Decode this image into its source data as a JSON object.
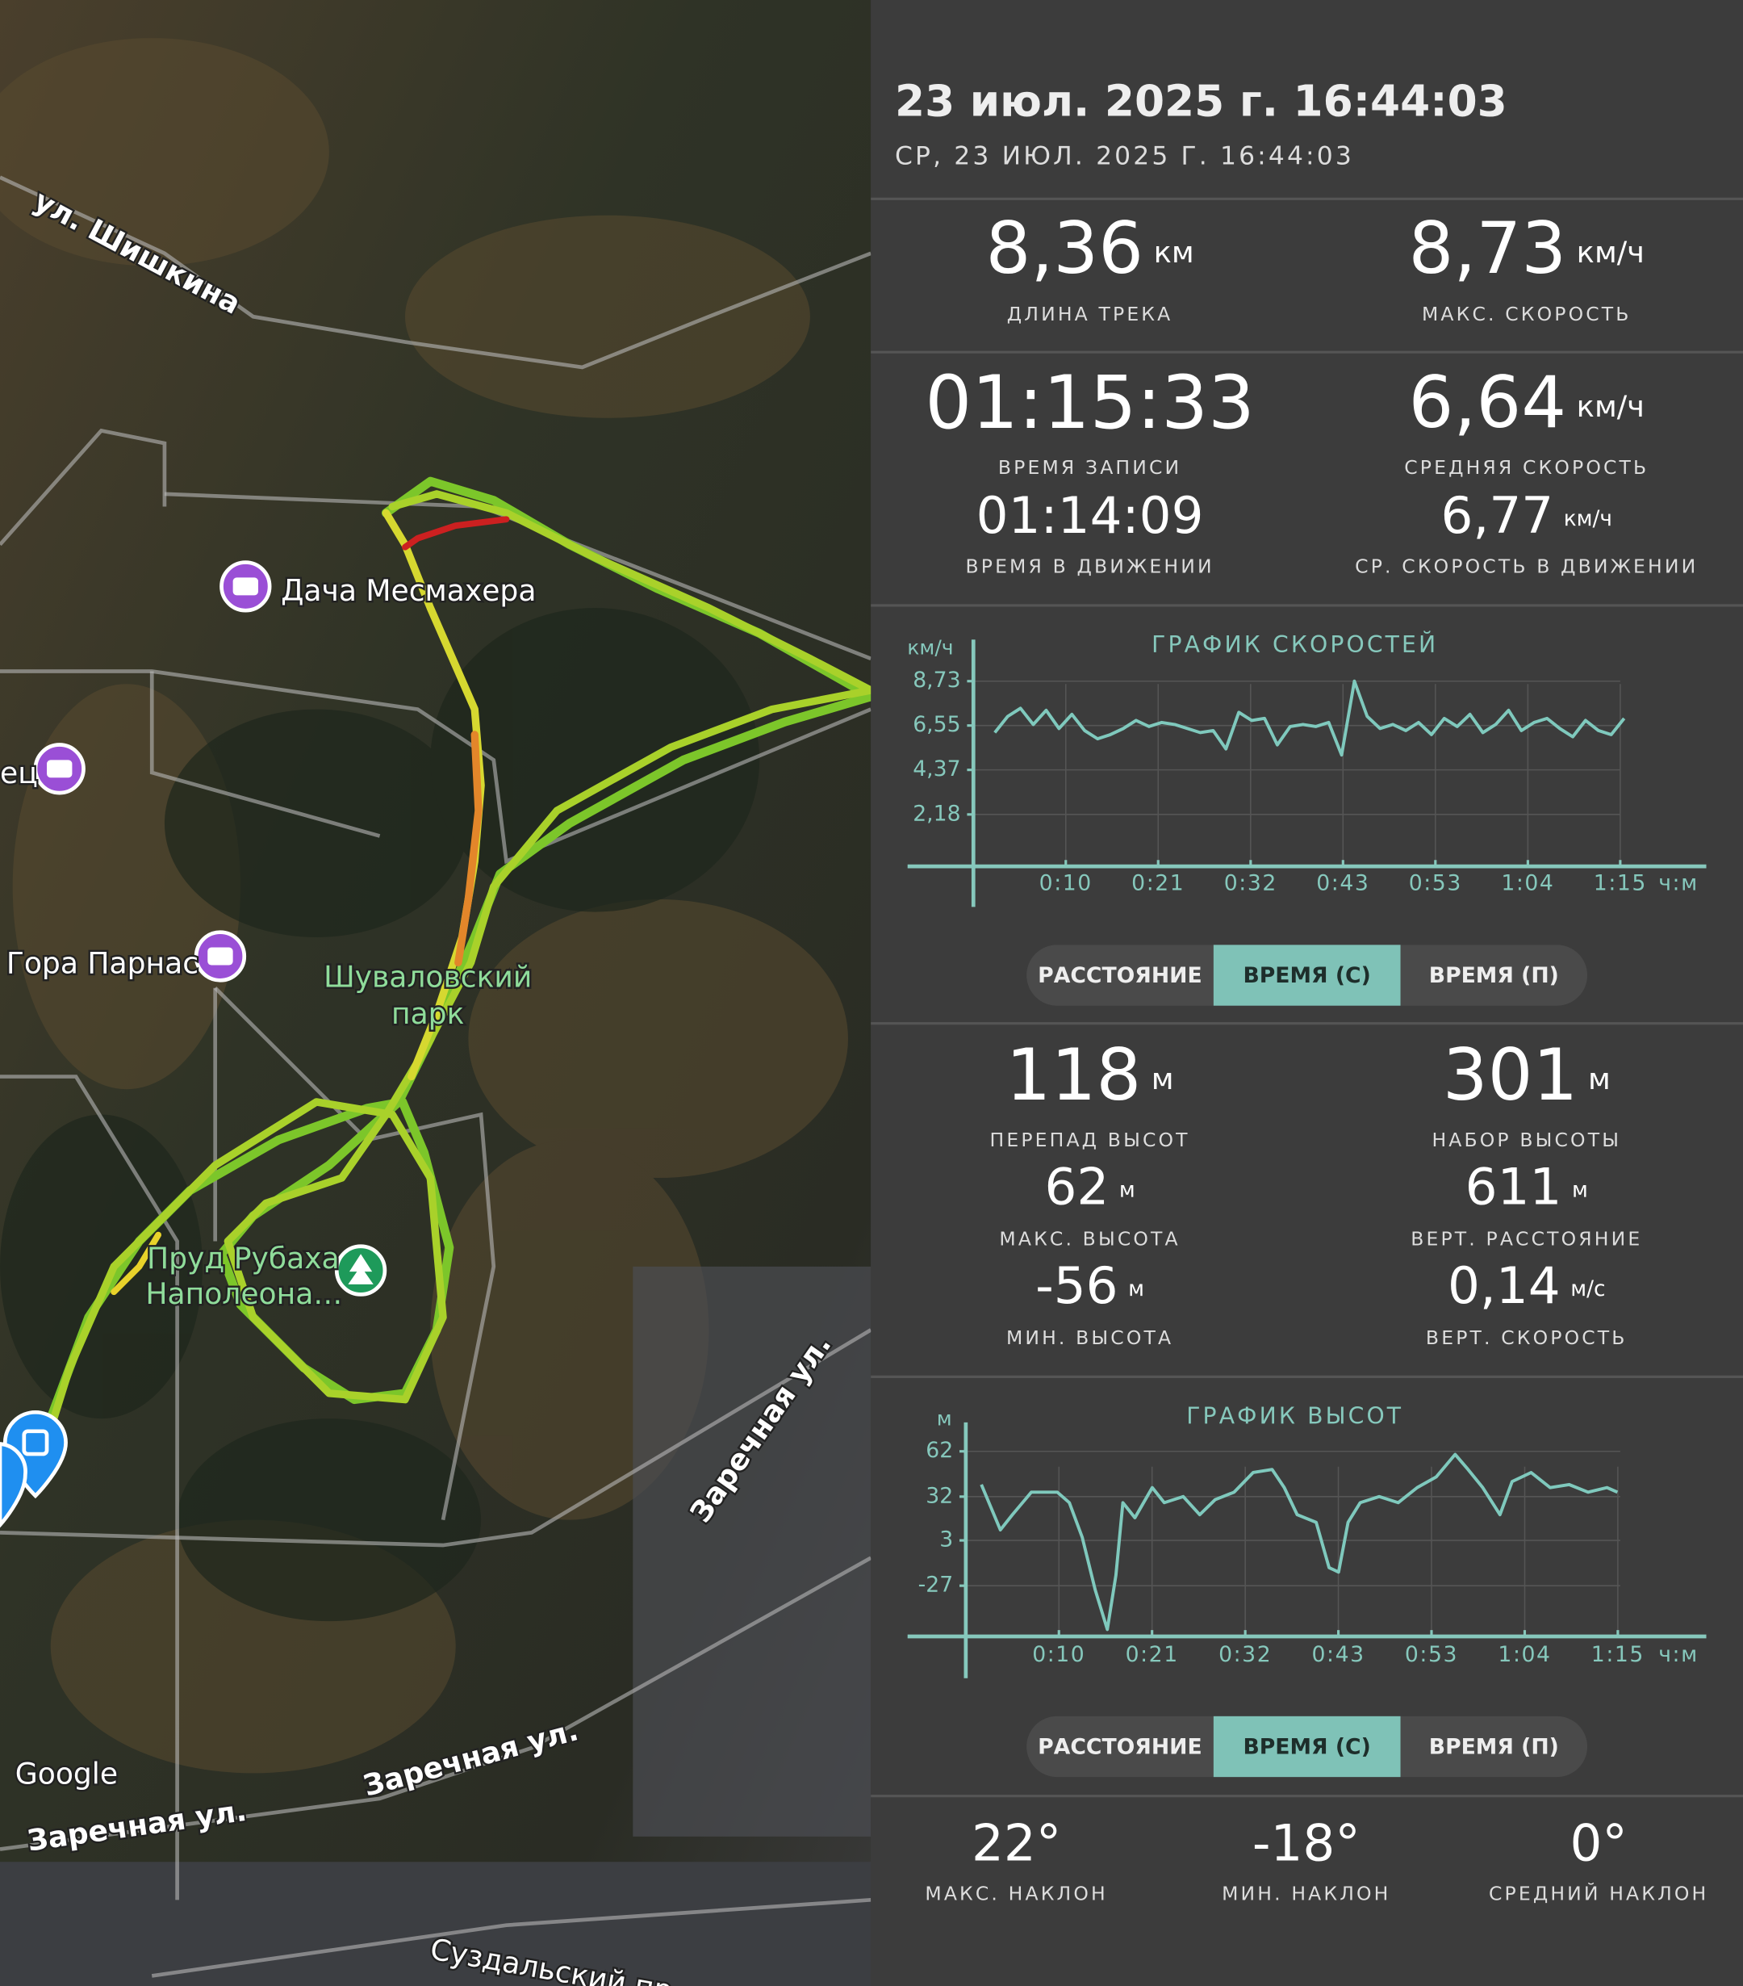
{
  "map": {
    "labels": [
      "ул. Шишкина",
      "Дача Месмахера",
      "ец",
      "Гора Парнас",
      "Шуваловский",
      "парк",
      "Пруд Рубаха",
      "Наполеона…",
      "Заречная ул.",
      "Заречная ул.",
      "Заречная ул.",
      "Суздальский пр"
    ],
    "attribution": "Google"
  },
  "header": {
    "title": "23 июл. 2025 г. 16:44:03",
    "subtitle": "СР, 23 ИЮЛ. 2025 Г. 16:44:03"
  },
  "stats": [
    {
      "value": "8,36",
      "unit": "км",
      "label": "ДЛИНА ТРЕКА"
    },
    {
      "value": "8,73",
      "unit": "км/ч",
      "label": "МАКС. СКОРОСТЬ"
    },
    {
      "value": "01:15:33",
      "label": "ВРЕМЯ ЗАПИСИ"
    },
    {
      "value": "6,64",
      "unit": "км/ч",
      "label": "СРЕДНЯЯ СКОРОСТЬ"
    },
    {
      "value": "01:14:09",
      "label": "ВРЕМЯ В ДВИЖЕНИИ"
    },
    {
      "value": "6,77",
      "unit": "км/ч",
      "label": "СР. СКОРОСТЬ В ДВИЖЕНИИ"
    }
  ],
  "speed_toggle": [
    "РАССТОЯНИЕ",
    "ВРЕМЯ (С)",
    "ВРЕМЯ (П)"
  ],
  "elevation_stats": [
    {
      "value": "118",
      "unit": "м",
      "label": "ПЕРЕПАД ВЫСОТ"
    },
    {
      "value": "301",
      "unit": "м",
      "label": "НАБОР ВЫСОТЫ"
    },
    {
      "value": "62",
      "unit": "м",
      "label": "МАКС. ВЫСОТА"
    },
    {
      "value": "611",
      "unit": "м",
      "label": "ВЕРТ. РАССТОЯНИЕ"
    },
    {
      "value": "-56",
      "unit": "м",
      "label": "МИН. ВЫСОТА"
    },
    {
      "value": "0,14",
      "unit": "м/с",
      "label": "ВЕРТ. СКОРОСТЬ"
    }
  ],
  "elevation_toggle": [
    "РАССТОЯНИЕ",
    "ВРЕМЯ (С)",
    "ВРЕМЯ (П)"
  ],
  "slope": [
    {
      "value": "22°",
      "label": "МАКС. НАКЛОН"
    },
    {
      "value": "-18°",
      "label": "МИН. НАКЛОН"
    },
    {
      "value": "0°",
      "label": "СРЕДНИЙ НАКЛОН"
    }
  ],
  "chart_data": [
    {
      "type": "line",
      "title": "ГРАФИК СКОРОСТЕЙ",
      "y_label": "км/ч",
      "x_label": "ч:м",
      "grid": true,
      "xlim": [
        0,
        85.6
      ],
      "ylim": [
        -0.37,
        10.46
      ],
      "xticks": [
        {
          "value": 10.79,
          "label": "0:10"
        },
        {
          "value": 21.58,
          "label": "0:21"
        },
        {
          "value": 32.38,
          "label": "0:32"
        },
        {
          "value": 43.17,
          "label": "0:43"
        },
        {
          "value": 53.96,
          "label": "0:53"
        },
        {
          "value": 64.76,
          "label": "1:04"
        },
        {
          "value": 75.55,
          "label": "1:15"
        }
      ],
      "yticks": [
        {
          "value": 8.73,
          "label": "8,73"
        },
        {
          "value": 6.55,
          "label": "6,55"
        },
        {
          "value": 4.37,
          "label": "4,37"
        },
        {
          "value": 2.18,
          "label": "2,18"
        }
      ],
      "x": [
        2.5,
        4,
        5.5,
        7,
        8.5,
        10,
        11.5,
        13,
        14.5,
        16,
        17.5,
        19,
        20.5,
        22,
        23.5,
        25,
        26.5,
        28,
        29.5,
        31,
        32.5,
        34,
        35.5,
        37,
        38.5,
        40,
        41.5,
        43,
        44.5,
        46,
        47.5,
        49,
        50.5,
        52,
        53.5,
        55,
        56.5,
        58,
        59.5,
        61,
        62.5,
        64,
        65.5,
        67,
        68.5,
        70,
        71.5,
        73,
        74.5,
        76
      ],
      "series": [
        {
          "color": "#7fc9bd",
          "values": [
            6.2,
            7.0,
            7.4,
            6.6,
            7.3,
            6.4,
            7.1,
            6.3,
            5.9,
            6.1,
            6.4,
            6.8,
            6.5,
            6.7,
            6.6,
            6.4,
            6.2,
            6.3,
            5.4,
            7.2,
            6.8,
            6.9,
            5.6,
            6.5,
            6.6,
            6.5,
            6.7,
            5.1,
            8.73,
            7.0,
            6.4,
            6.6,
            6.3,
            6.7,
            6.1,
            6.9,
            6.5,
            7.1,
            6.2,
            6.6,
            7.3,
            6.3,
            6.7,
            6.9,
            6.4,
            6.0,
            6.8,
            6.3,
            6.1,
            6.9
          ]
        }
      ]
    },
    {
      "type": "line",
      "title": "ГРАФИК ВЫСОТ",
      "y_label": "м",
      "x_label": "ч:м",
      "grid": true,
      "xlim": [
        0,
        85.8
      ],
      "ylim": [
        -60.6,
        77
      ],
      "xticks": [
        {
          "value": 10.79,
          "label": "0:10"
        },
        {
          "value": 21.58,
          "label": "0:21"
        },
        {
          "value": 32.38,
          "label": "0:32"
        },
        {
          "value": 43.17,
          "label": "0:43"
        },
        {
          "value": 53.96,
          "label": "0:53"
        },
        {
          "value": 64.76,
          "label": "1:04"
        },
        {
          "value": 75.55,
          "label": "1:15"
        }
      ],
      "yticks": [
        62,
        32,
        3,
        -27
      ],
      "x": [
        1.8,
        4.0,
        5.4,
        7.6,
        10.6,
        12.0,
        13.5,
        15.0,
        16.4,
        17.4,
        18.2,
        19.6,
        21.6,
        23.0,
        25.2,
        27.1,
        28.9,
        31.1,
        33.3,
        35.5,
        36.9,
        38.4,
        40.6,
        42.1,
        43.2,
        44.3,
        45.7,
        47.9,
        50.1,
        52.3,
        54.5,
        56.7,
        58.2,
        59.9,
        61.9,
        63.3,
        65.5,
        67.7,
        69.9,
        72.1,
        74.3,
        75.5
      ],
      "series": [
        {
          "color": "#7fc9bd",
          "values": [
            40,
            10,
            20,
            35,
            35,
            28,
            5,
            -30,
            -56,
            -20,
            28,
            18,
            38,
            28,
            32,
            20,
            30,
            35,
            48,
            50,
            38,
            20,
            15,
            -15,
            -18,
            15,
            28,
            32,
            28,
            38,
            45,
            60,
            50,
            38,
            20,
            42,
            48,
            38,
            40,
            35,
            38,
            35
          ]
        }
      ]
    }
  ]
}
